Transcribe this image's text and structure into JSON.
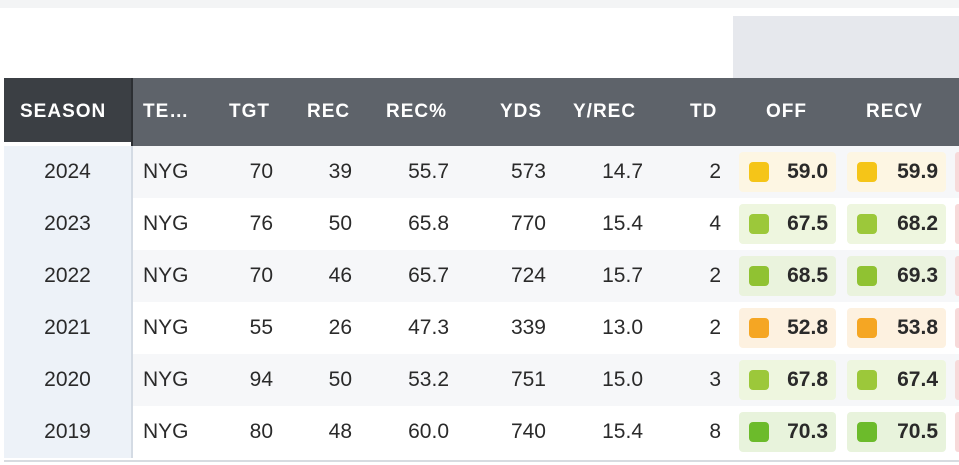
{
  "columns": [
    {
      "key": "season",
      "label": "SEASON"
    },
    {
      "key": "team",
      "label": "TE…"
    },
    {
      "key": "tgt",
      "label": "TGT"
    },
    {
      "key": "rec",
      "label": "REC"
    },
    {
      "key": "rec_pct",
      "label": "REC%"
    },
    {
      "key": "yds",
      "label": "YDS"
    },
    {
      "key": "y_rec",
      "label": "Y/REC"
    },
    {
      "key": "td",
      "label": "TD"
    },
    {
      "key": "off",
      "label": "OFF"
    },
    {
      "key": "recv",
      "label": "RECV"
    }
  ],
  "rows": [
    {
      "season": "2024",
      "team": "NYG",
      "tgt": "70",
      "rec": "39",
      "rec_pct": "55.7",
      "yds": "573",
      "y_rec": "14.7",
      "td": "2",
      "off": {
        "value": "59.0",
        "bg": "#fdf6e3",
        "swatch": "#f5c518"
      },
      "recv": {
        "value": "59.9",
        "bg": "#fdf6e3",
        "swatch": "#f5c518"
      }
    },
    {
      "season": "2023",
      "team": "NYG",
      "tgt": "76",
      "rec": "50",
      "rec_pct": "65.8",
      "yds": "770",
      "y_rec": "15.4",
      "td": "4",
      "off": {
        "value": "67.5",
        "bg": "#eef6df",
        "swatch": "#9cc83a"
      },
      "recv": {
        "value": "68.2",
        "bg": "#eef6df",
        "swatch": "#9cc83a"
      }
    },
    {
      "season": "2022",
      "team": "NYG",
      "tgt": "70",
      "rec": "46",
      "rec_pct": "65.7",
      "yds": "724",
      "y_rec": "15.7",
      "td": "2",
      "off": {
        "value": "68.5",
        "bg": "#eaf3dd",
        "swatch": "#90c232"
      },
      "recv": {
        "value": "69.3",
        "bg": "#eaf3dd",
        "swatch": "#90c232"
      }
    },
    {
      "season": "2021",
      "team": "NYG",
      "tgt": "55",
      "rec": "26",
      "rec_pct": "47.3",
      "yds": "339",
      "y_rec": "13.0",
      "td": "2",
      "off": {
        "value": "52.8",
        "bg": "#fdf1e0",
        "swatch": "#f5a623"
      },
      "recv": {
        "value": "53.8",
        "bg": "#fdf1e0",
        "swatch": "#f5a623"
      }
    },
    {
      "season": "2020",
      "team": "NYG",
      "tgt": "94",
      "rec": "50",
      "rec_pct": "53.2",
      "yds": "751",
      "y_rec": "15.0",
      "td": "3",
      "off": {
        "value": "67.8",
        "bg": "#eef6df",
        "swatch": "#9cc83a"
      },
      "recv": {
        "value": "67.4",
        "bg": "#eef6df",
        "swatch": "#9cc83a"
      }
    },
    {
      "season": "2019",
      "team": "NYG",
      "tgt": "80",
      "rec": "48",
      "rec_pct": "60.0",
      "yds": "740",
      "y_rec": "15.4",
      "td": "8",
      "off": {
        "value": "70.3",
        "bg": "#e8f3dc",
        "swatch": "#6cbb2b"
      },
      "recv": {
        "value": "70.5",
        "bg": "#e8f3dc",
        "swatch": "#6cbb2b"
      }
    }
  ],
  "colors": {
    "header_dark": "#3b3f44",
    "header": "#5e636a",
    "edge_grade": "#f7d9d9"
  }
}
